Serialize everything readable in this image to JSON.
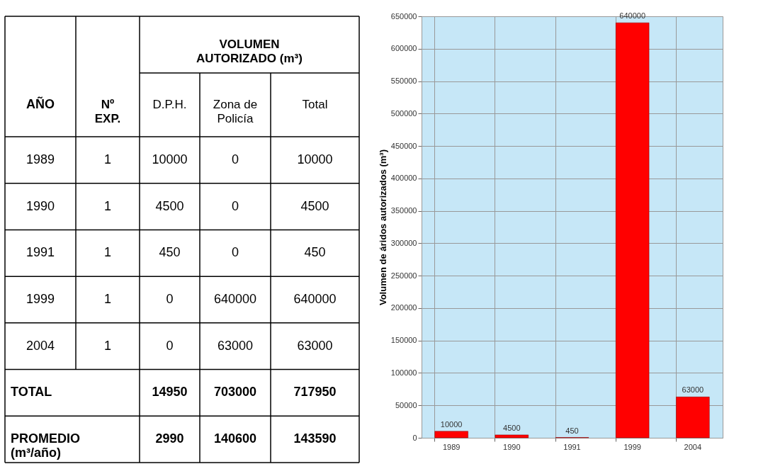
{
  "chart_data": [
    {
      "type": "heatmap",
      "ylabel": "AÑO",
      "xlabel": "VOLUMEN AUTORIZADO (m³)",
      "categories": [
        "Nº EXP.",
        "D.P.H.",
        "Zona de Policía",
        "Total"
      ],
      "y_categories": [
        "1989",
        "1990",
        "1991",
        "1999",
        "2004",
        "TOTAL",
        "PROMEDIO (m³/año)"
      ],
      "cells": [
        [
          1,
          10000,
          0,
          10000
        ],
        [
          1,
          4500,
          0,
          4500
        ],
        [
          1,
          450,
          0,
          450
        ],
        [
          1,
          0,
          640000,
          640000
        ],
        [
          1,
          0,
          63000,
          63000
        ],
        [
          null,
          14950,
          703000,
          717950
        ],
        [
          null,
          2990,
          140600,
          143590
        ]
      ],
      "data_labels": true
    },
    {
      "type": "bar",
      "ylabel": "Volumen de áridos autorizados (m³)",
      "categories": [
        "1989",
        "1990",
        "1991",
        "1999",
        "2004"
      ],
      "values": [
        10000,
        4500,
        450,
        640000,
        63000
      ],
      "color": "#ff0000",
      "ylim": [
        0,
        650000
      ],
      "yticks": [
        0,
        50000,
        100000,
        150000,
        200000,
        250000,
        300000,
        350000,
        400000,
        450000,
        500000,
        550000,
        600000,
        650000
      ],
      "grid": true,
      "data_labels": true
    }
  ]
}
